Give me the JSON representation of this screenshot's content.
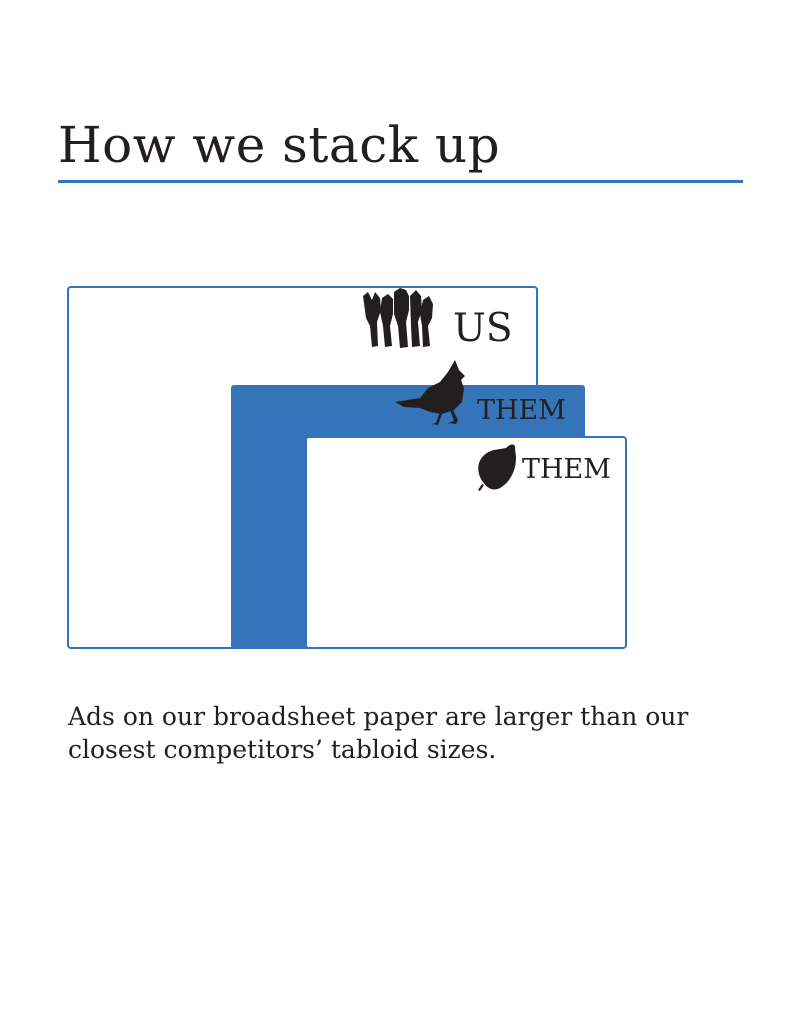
{
  "header": {
    "title": "How we stack up"
  },
  "diagram": {
    "us_label": "US",
    "competitor_1_label": "THEM",
    "competitor_2_label": "THEM",
    "us_icon": "people-silhouette-icon",
    "competitor_1_icon": "cardinal-bird-icon",
    "competitor_2_icon": "leaf-icon"
  },
  "caption": {
    "text": "Ads on our broadsheet paper are larger than our closest competitors’ tabloid sizes."
  },
  "colors": {
    "accent": "#3574b8",
    "text": "#231f20",
    "background": "#ffffff"
  }
}
